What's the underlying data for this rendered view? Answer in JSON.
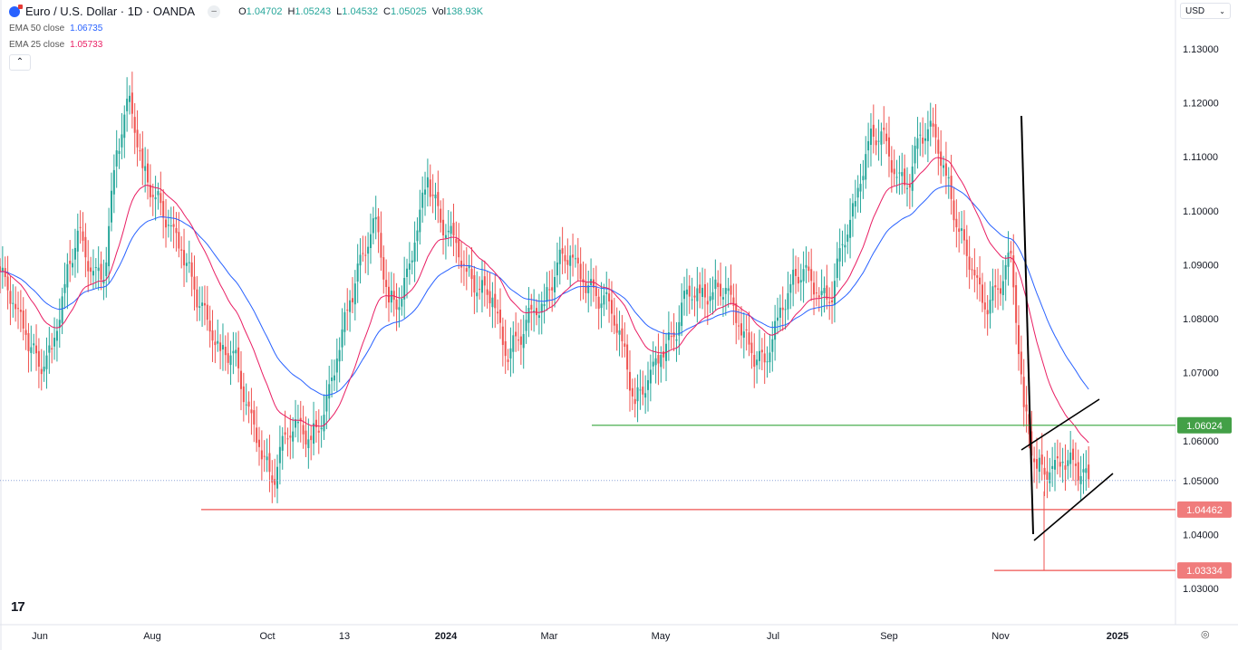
{
  "header": {
    "symbol": "Euro / U.S. Dollar · 1D · OANDA",
    "ohlc": {
      "o_label": "O",
      "o": "1.04702",
      "h_label": "H",
      "h": "1.05243",
      "l_label": "L",
      "l": "1.04532",
      "c_label": "C",
      "c": "1.05025",
      "vol_label": "Vol",
      "vol": "138.93K"
    },
    "ema50": {
      "label": "EMA 50 close",
      "value": "1.06735"
    },
    "ema25": {
      "label": "EMA 25 close",
      "value": "1.05733"
    },
    "collapse_icon": "chevron-up-icon"
  },
  "currency": "USD",
  "logo": "TV",
  "colors": {
    "up": "#26a69a",
    "down": "#ef5350",
    "ema50": "#2962ff",
    "ema25": "#e91e63",
    "support": "#4caf50",
    "resistance": "#ef5350"
  },
  "chart_data": {
    "type": "candlestick",
    "timeframe": "1D",
    "weekly_closes": [
      1.0887,
      1.0829,
      1.077,
      1.0711,
      1.0743,
      1.0864,
      1.0963,
      1.0887,
      1.0872,
      1.1112,
      1.1213,
      1.1079,
      1.1025,
      1.0974,
      1.0926,
      1.0854,
      1.0798,
      1.074,
      1.074,
      1.0641,
      1.0562,
      1.0496,
      1.0585,
      1.0609,
      1.0575,
      1.0622,
      1.0726,
      1.0834,
      1.0921,
      1.0988,
      1.083,
      1.0837,
      1.0941,
      1.1062,
      1.0978,
      1.0954,
      1.0887,
      1.0855,
      1.0839,
      1.0731,
      1.0761,
      1.0817,
      1.0827,
      1.0904,
      1.0917,
      1.0867,
      1.0842,
      1.0832,
      1.0758,
      1.0642,
      1.0686,
      1.0733,
      1.0766,
      1.0854,
      1.0847,
      1.0849,
      1.0857,
      1.0787,
      1.0736,
      1.0719,
      1.0802,
      1.0864,
      1.0892,
      1.0847,
      1.0829,
      1.0938,
      1.1018,
      1.1129,
      1.1147,
      1.1068,
      1.1042,
      1.1141,
      1.1156,
      1.1065,
      1.0961,
      1.0891,
      1.0817,
      1.0854,
      1.0921,
      1.0636,
      1.0522,
      1.0515,
      1.0535,
      1.0527,
      1.05025
    ],
    "ylim": [
      1.025,
      1.1345
    ],
    "y_ticks": [
      "1.13000",
      "1.12000",
      "1.11000",
      "1.10000",
      "1.09000",
      "1.08000",
      "1.07000",
      "1.06000",
      "1.05000",
      "1.04000",
      "1.03000"
    ],
    "x_ticks": [
      "Jun",
      "Aug",
      "Oct",
      "13",
      "2024",
      "Mar",
      "May",
      "Jul",
      "Sep",
      "Nov",
      "2025"
    ],
    "indicators": [
      {
        "name": "EMA 50 close",
        "period": 50
      },
      {
        "name": "EMA 25 close",
        "period": 25
      }
    ],
    "levels": [
      {
        "label": "1.06024",
        "value": 1.06024,
        "color": "green"
      },
      {
        "label": "1.04462",
        "value": 1.04462,
        "color": "red"
      },
      {
        "label": "1.03334",
        "value": 1.03334,
        "color": "red"
      }
    ],
    "current_price_line": 1.05025,
    "drawings": [
      "flagpole trend line",
      "rising wedge upper line",
      "rising wedge lower line"
    ]
  }
}
